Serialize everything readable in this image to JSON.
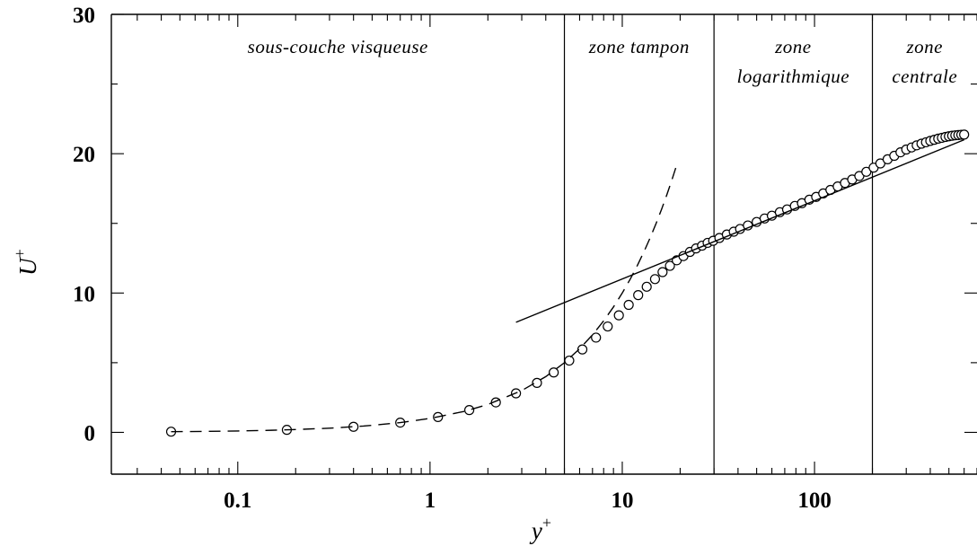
{
  "chart_data": {
    "type": "line",
    "title": "",
    "xlabel": "y",
    "xlabel_sup": "+",
    "ylabel": "U",
    "ylabel_sup": "+",
    "xscale": "log",
    "xlim": [
      0.022,
      700
    ],
    "ylim": [
      -3,
      30
    ],
    "x_ticks": [
      0.1,
      1,
      10,
      100
    ],
    "x_tick_labels": [
      "0.1",
      "1",
      "10",
      "100"
    ],
    "y_ticks": [
      0,
      10,
      20,
      30
    ],
    "y_tick_labels": [
      "0",
      "10",
      "20",
      "30"
    ],
    "grid": false,
    "zone_boundaries": [
      5,
      30,
      200
    ],
    "zones": [
      {
        "lines": [
          "sous-couche visqueuse"
        ],
        "x_range": [
          0.022,
          5
        ]
      },
      {
        "lines": [
          "zone tampon"
        ],
        "x_range": [
          5,
          30
        ]
      },
      {
        "lines": [
          "zone",
          "logarithmique"
        ],
        "x_range": [
          30,
          200
        ]
      },
      {
        "lines": [
          "zone",
          "centrale"
        ],
        "x_range": [
          200,
          700
        ]
      }
    ],
    "series": [
      {
        "style": "circle-markers",
        "x": [
          0.045,
          0.18,
          0.4,
          0.7,
          1.1,
          1.6,
          2.2,
          2.8,
          3.6,
          4.4,
          5.3,
          6.2,
          7.3,
          8.4,
          9.6,
          10.8,
          12.1,
          13.4,
          14.8,
          16.2,
          17.7,
          19.2,
          20.8,
          22.5,
          24.2,
          26.0,
          27.8,
          29.7,
          32,
          35,
          38,
          41,
          45,
          50,
          55,
          60,
          66,
          72,
          79,
          86,
          94,
          102,
          111,
          121,
          132,
          144,
          157,
          171,
          186,
          203,
          220,
          240,
          260,
          280,
          300,
          320,
          340,
          360,
          380,
          400,
          420,
          440,
          460,
          480,
          500,
          520,
          540,
          560,
          580,
          600
        ],
        "y": [
          0.05,
          0.18,
          0.4,
          0.7,
          1.1,
          1.6,
          2.15,
          2.8,
          3.55,
          4.3,
          5.15,
          5.95,
          6.8,
          7.6,
          8.4,
          9.15,
          9.85,
          10.45,
          11.0,
          11.5,
          11.95,
          12.35,
          12.65,
          12.95,
          13.2,
          13.4,
          13.6,
          13.75,
          13.95,
          14.2,
          14.4,
          14.6,
          14.85,
          15.1,
          15.35,
          15.55,
          15.8,
          16.0,
          16.25,
          16.45,
          16.7,
          16.9,
          17.15,
          17.4,
          17.65,
          17.9,
          18.15,
          18.4,
          18.7,
          19.0,
          19.3,
          19.6,
          19.85,
          20.1,
          20.3,
          20.45,
          20.6,
          20.72,
          20.82,
          20.92,
          21.0,
          21.08,
          21.14,
          21.2,
          21.25,
          21.29,
          21.32,
          21.34,
          21.36,
          21.37
        ]
      },
      {
        "style": "dashed",
        "x": [
          0.045,
          0.07,
          0.1,
          0.15,
          0.2,
          0.3,
          0.45,
          0.7,
          1,
          1.5,
          2,
          3,
          4,
          5,
          6,
          7,
          8,
          9,
          10,
          11,
          12,
          13,
          14,
          15,
          16,
          17,
          18,
          19.2
        ],
        "y": [
          0.05,
          0.07,
          0.1,
          0.15,
          0.2,
          0.3,
          0.45,
          0.7,
          1.0,
          1.5,
          2.0,
          3.0,
          4.0,
          5.0,
          6.0,
          7.0,
          8.0,
          9.0,
          10.0,
          11.0,
          12.0,
          13.0,
          14.0,
          15.0,
          16.0,
          17.0,
          18.0,
          19.2
        ]
      },
      {
        "style": "solid",
        "x": [
          2.8,
          600
        ],
        "y": [
          7.9,
          21.0
        ]
      }
    ]
  }
}
